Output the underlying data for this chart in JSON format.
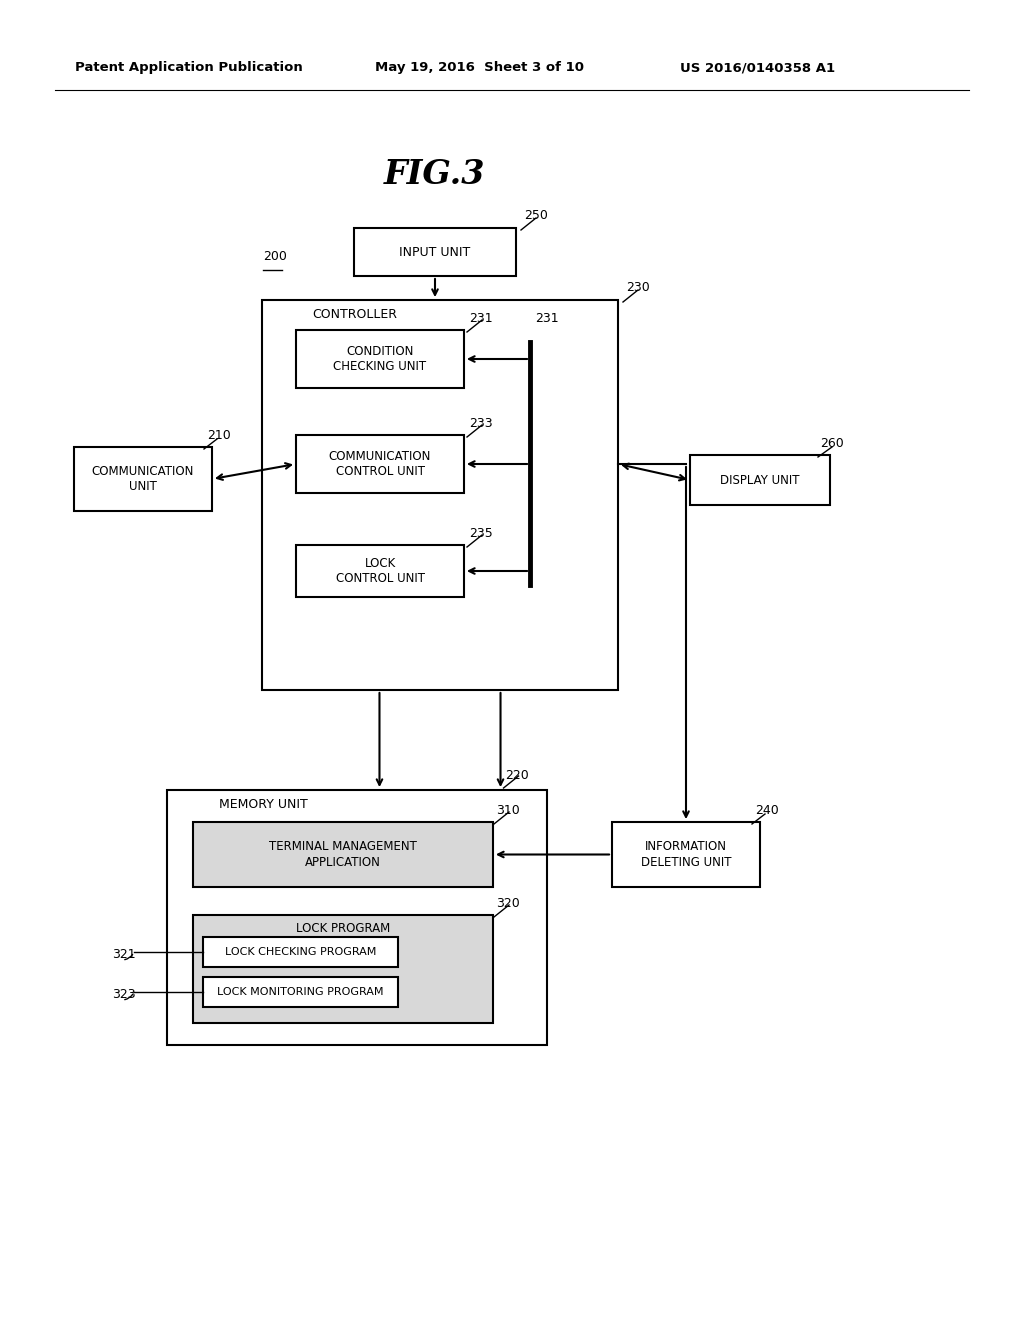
{
  "bg_color": "#ffffff",
  "header_left": "Patent Application Publication",
  "header_mid": "May 19, 2016  Sheet 3 of 10",
  "header_right": "US 2016/0140358 A1",
  "fig_title": "FIG.3",
  "label_200": "200",
  "label_210": "210",
  "label_220": "220",
  "label_230": "230",
  "label_231": "231",
  "label_233": "233",
  "label_235": "235",
  "label_240": "240",
  "label_250": "250",
  "label_260": "260",
  "label_310": "310",
  "label_320": "320",
  "label_321": "321",
  "label_323": "323",
  "box_input_unit": "INPUT UNIT",
  "box_controller": "CONTROLLER",
  "box_comm_unit": "COMMUNICATION\nUNIT",
  "box_display_unit": "DISPLAY UNIT",
  "box_condition": "CONDITION\nCHECKING UNIT",
  "box_comm_control": "COMMUNICATION\nCONTROL UNIT",
  "box_lock_control": "LOCK\nCONTROL UNIT",
  "box_memory": "MEMORY UNIT",
  "box_info_delete": "INFORMATION\nDELETING UNIT",
  "box_terminal_mgmt": "TERMINAL MANAGEMENT\nAPPLICATION",
  "box_lock_program": "LOCK PROGRAM",
  "box_lock_checking": "LOCK CHECKING PROGRAM",
  "box_lock_monitoring": "LOCK MONITORING PROGRAM"
}
